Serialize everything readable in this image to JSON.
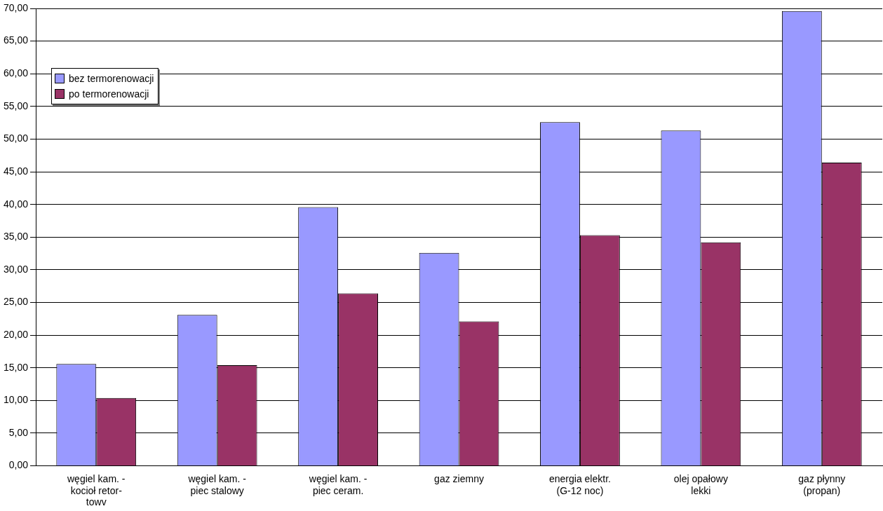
{
  "chart_data": {
    "type": "bar",
    "categories": [
      "węgiel kam. - kocioł retor-towv",
      "węgiel kam. - piec stalowy",
      "węgiel kam. - piec ceram.",
      "gaz ziemny",
      "energia elektr. (G-12 noc)",
      "olej opałowy lekki",
      "gaz płynny (propan)"
    ],
    "series": [
      {
        "name": "bez termorenowacji",
        "color": "#9999ff",
        "values": [
          15.6,
          23.1,
          39.6,
          32.6,
          52.6,
          51.3,
          69.6
        ]
      },
      {
        "name": "po termorenowacji",
        "color": "#993366",
        "values": [
          10.4,
          15.4,
          26.4,
          22.1,
          35.3,
          34.2,
          46.4
        ]
      }
    ],
    "ylim": [
      0,
      70
    ],
    "yticks": [
      {
        "value": 0,
        "label": "0,00"
      },
      {
        "value": 5,
        "label": "5,00"
      },
      {
        "value": 10,
        "label": "10,00"
      },
      {
        "value": 15,
        "label": "15,00"
      },
      {
        "value": 20,
        "label": "20,00"
      },
      {
        "value": 25,
        "label": "25,00"
      },
      {
        "value": 30,
        "label": "30,00"
      },
      {
        "value": 35,
        "label": "35,00"
      },
      {
        "value": 40,
        "label": "40,00"
      },
      {
        "value": 45,
        "label": "45,00"
      },
      {
        "value": 50,
        "label": "50,00"
      },
      {
        "value": 55,
        "label": "55,00"
      },
      {
        "value": 60,
        "label": "60,00"
      },
      {
        "value": 65,
        "label": "65,00"
      },
      {
        "value": 70,
        "label": "70,00"
      }
    ],
    "grid": "y",
    "legend": "top left"
  }
}
